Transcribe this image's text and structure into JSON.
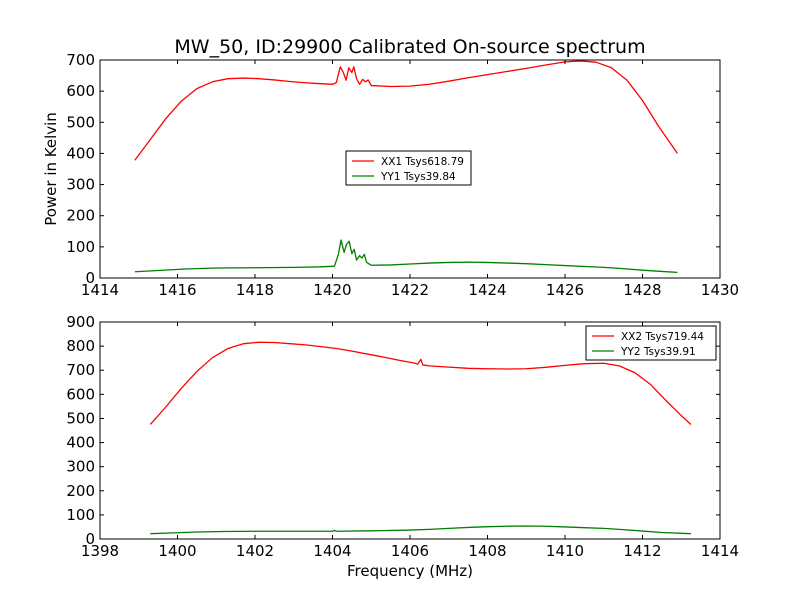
{
  "chart_data": [
    {
      "type": "line",
      "title": "MW_50, ID:29900 Calibrated On-source spectrum",
      "xlabel": "",
      "ylabel": "Power in Kelvin",
      "xlim": [
        1414,
        1430
      ],
      "ylim": [
        0,
        700
      ],
      "xticks": [
        "1414",
        "1416",
        "1418",
        "1420",
        "1422",
        "1424",
        "1426",
        "1428",
        "1430"
      ],
      "yticks": [
        "0",
        "100",
        "200",
        "300",
        "400",
        "500",
        "600",
        "700"
      ],
      "grid": false,
      "legend": "center",
      "series": [
        {
          "name": "XX1 Tsys618.79",
          "color": "#ff0000",
          "points": [
            [
              1414.9,
              378
            ],
            [
              1415.3,
              445
            ],
            [
              1415.7,
              512
            ],
            [
              1416.1,
              568
            ],
            [
              1416.5,
              608
            ],
            [
              1416.9,
              630
            ],
            [
              1417.3,
              640
            ],
            [
              1417.7,
              642
            ],
            [
              1418.1,
              640
            ],
            [
              1418.5,
              636
            ],
            [
              1418.9,
              631
            ],
            [
              1419.3,
              627
            ],
            [
              1419.7,
              624
            ],
            [
              1420.0,
              622
            ],
            [
              1420.1,
              628
            ],
            [
              1420.2,
              678
            ],
            [
              1420.28,
              660
            ],
            [
              1420.35,
              635
            ],
            [
              1420.42,
              675
            ],
            [
              1420.5,
              660
            ],
            [
              1420.55,
              678
            ],
            [
              1420.62,
              640
            ],
            [
              1420.7,
              622
            ],
            [
              1420.78,
              638
            ],
            [
              1420.85,
              630
            ],
            [
              1420.92,
              636
            ],
            [
              1421.0,
              618
            ],
            [
              1421.5,
              615
            ],
            [
              1422.0,
              616
            ],
            [
              1422.5,
              622
            ],
            [
              1423.0,
              632
            ],
            [
              1423.5,
              643
            ],
            [
              1424.0,
              653
            ],
            [
              1424.5,
              663
            ],
            [
              1425.0,
              673
            ],
            [
              1425.5,
              684
            ],
            [
              1426.0,
              694
            ],
            [
              1426.4,
              697
            ],
            [
              1426.8,
              693
            ],
            [
              1427.2,
              675
            ],
            [
              1427.6,
              635
            ],
            [
              1428.0,
              570
            ],
            [
              1428.4,
              490
            ],
            [
              1428.9,
              400
            ]
          ]
        },
        {
          "name": "YY1 Tsys39.84",
          "color": "#008000",
          "points": [
            [
              1414.9,
              20
            ],
            [
              1415.5,
              24
            ],
            [
              1416.2,
              29
            ],
            [
              1417.0,
              32
            ],
            [
              1418.0,
              33
            ],
            [
              1419.0,
              34
            ],
            [
              1419.7,
              36
            ],
            [
              1420.05,
              38
            ],
            [
              1420.15,
              75
            ],
            [
              1420.22,
              122
            ],
            [
              1420.3,
              82
            ],
            [
              1420.36,
              108
            ],
            [
              1420.43,
              118
            ],
            [
              1420.5,
              78
            ],
            [
              1420.56,
              92
            ],
            [
              1420.62,
              58
            ],
            [
              1420.7,
              72
            ],
            [
              1420.76,
              64
            ],
            [
              1420.82,
              76
            ],
            [
              1420.88,
              50
            ],
            [
              1421.0,
              41
            ],
            [
              1421.5,
              42
            ],
            [
              1422.0,
              45
            ],
            [
              1422.5,
              48
            ],
            [
              1423.0,
              50
            ],
            [
              1423.5,
              51
            ],
            [
              1424.0,
              50
            ],
            [
              1424.5,
              48
            ],
            [
              1425.0,
              46
            ],
            [
              1425.5,
              43
            ],
            [
              1426.0,
              40
            ],
            [
              1426.5,
              37
            ],
            [
              1427.0,
              34
            ],
            [
              1427.5,
              30
            ],
            [
              1428.0,
              25
            ],
            [
              1428.5,
              21
            ],
            [
              1428.9,
              18
            ]
          ]
        }
      ]
    },
    {
      "type": "line",
      "title": "",
      "xlabel": "Frequency (MHz)",
      "ylabel": "",
      "xlim": [
        1398,
        1414
      ],
      "ylim": [
        0,
        900
      ],
      "xticks": [
        "1398",
        "1400",
        "1402",
        "1404",
        "1406",
        "1408",
        "1410",
        "1412",
        "1414"
      ],
      "yticks": [
        "0",
        "100",
        "200",
        "300",
        "400",
        "500",
        "600",
        "700",
        "800",
        "900"
      ],
      "grid": false,
      "legend": "top-right",
      "series": [
        {
          "name": "XX2 Tsys719.44",
          "color": "#ff0000",
          "points": [
            [
              1399.3,
              475
            ],
            [
              1399.7,
              548
            ],
            [
              1400.1,
              625
            ],
            [
              1400.5,
              695
            ],
            [
              1400.9,
              752
            ],
            [
              1401.3,
              790
            ],
            [
              1401.7,
              810
            ],
            [
              1402.1,
              816
            ],
            [
              1402.5,
              815
            ],
            [
              1402.9,
              810
            ],
            [
              1403.3,
              805
            ],
            [
              1403.7,
              798
            ],
            [
              1404.1,
              790
            ],
            [
              1404.5,
              779
            ],
            [
              1404.9,
              767
            ],
            [
              1405.3,
              755
            ],
            [
              1405.7,
              742
            ],
            [
              1406.1,
              730
            ],
            [
              1406.2,
              725
            ],
            [
              1406.28,
              745
            ],
            [
              1406.33,
              722
            ],
            [
              1406.5,
              718
            ],
            [
              1407.0,
              713
            ],
            [
              1407.5,
              708
            ],
            [
              1408.0,
              706
            ],
            [
              1408.5,
              705
            ],
            [
              1409.0,
              706
            ],
            [
              1409.5,
              712
            ],
            [
              1410.0,
              720
            ],
            [
              1410.5,
              727
            ],
            [
              1411.0,
              729
            ],
            [
              1411.4,
              718
            ],
            [
              1411.8,
              690
            ],
            [
              1412.2,
              642
            ],
            [
              1412.6,
              575
            ],
            [
              1413.0,
              512
            ],
            [
              1413.25,
              475
            ]
          ]
        },
        {
          "name": "YY2 Tsys39.91",
          "color": "#008000",
          "points": [
            [
              1399.3,
              22
            ],
            [
              1399.8,
              25
            ],
            [
              1400.5,
              29
            ],
            [
              1401.2,
              31
            ],
            [
              1402.0,
              32
            ],
            [
              1403.0,
              32
            ],
            [
              1404.0,
              32
            ],
            [
              1404.05,
              36
            ],
            [
              1404.1,
              32
            ],
            [
              1405.0,
              34
            ],
            [
              1406.0,
              37
            ],
            [
              1406.5,
              40
            ],
            [
              1407.0,
              44
            ],
            [
              1407.5,
              48
            ],
            [
              1408.0,
              51
            ],
            [
              1408.5,
              53
            ],
            [
              1409.0,
              54
            ],
            [
              1409.5,
              53
            ],
            [
              1410.0,
              50
            ],
            [
              1410.5,
              47
            ],
            [
              1411.0,
              44
            ],
            [
              1411.5,
              39
            ],
            [
              1412.0,
              33
            ],
            [
              1412.5,
              27
            ],
            [
              1413.25,
              22
            ]
          ]
        }
      ]
    }
  ]
}
